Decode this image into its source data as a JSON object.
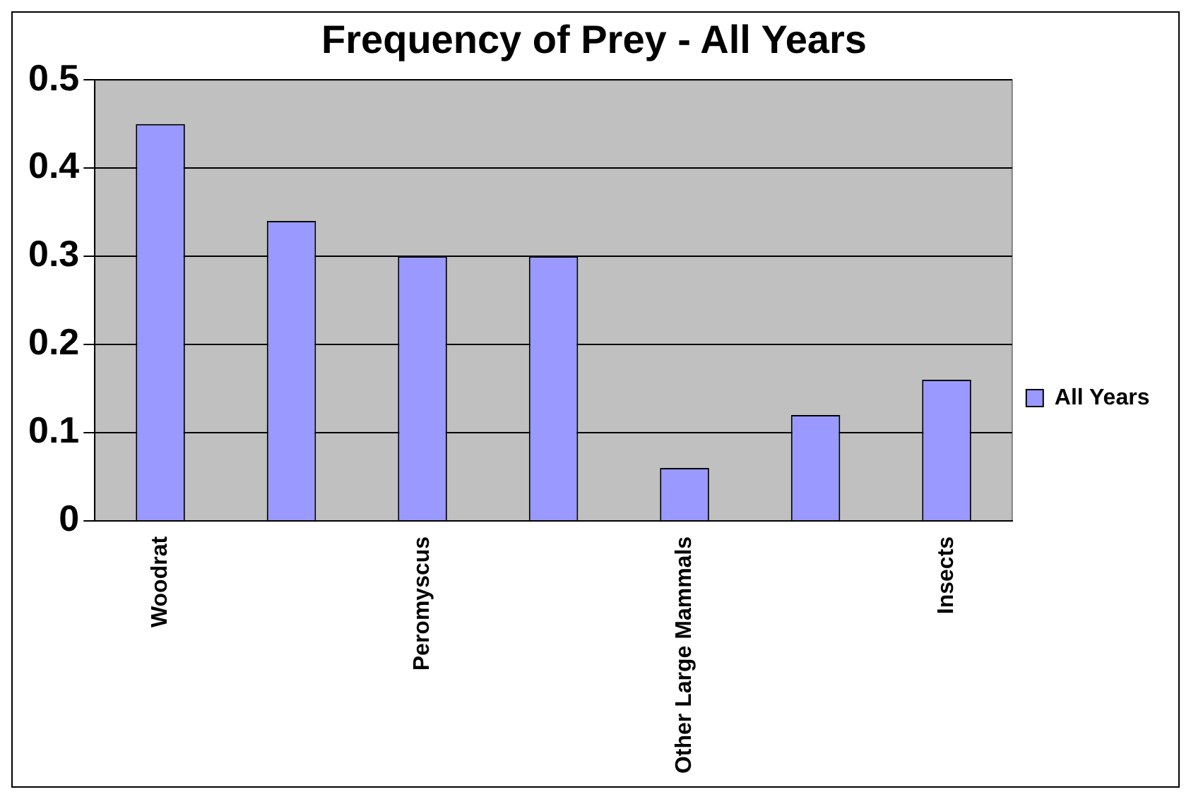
{
  "chart_data": {
    "type": "bar",
    "title": "Frequency of Prey - All Years",
    "categories": [
      "Woodrat",
      null,
      "Peromyscus",
      null,
      "Other Large Mammals",
      null,
      "Insects"
    ],
    "series": [
      {
        "name": "All Years",
        "color": "#9999ff",
        "values": [
          0.45,
          0.34,
          0.3,
          0.3,
          0.06,
          0.12,
          0.16
        ]
      }
    ],
    "ylim": [
      0,
      0.5
    ],
    "yticks": [
      0,
      0.1,
      0.2,
      0.3,
      0.4,
      0.5
    ],
    "grid": "y",
    "legend": "right"
  }
}
